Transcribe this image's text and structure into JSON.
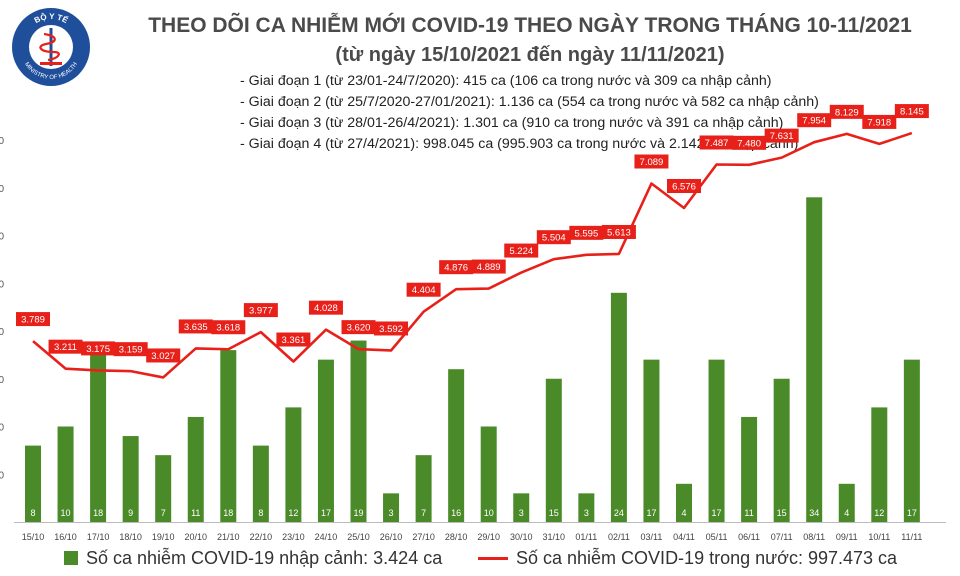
{
  "header": {
    "title": "THEO DÕI CA NHIỄM MỚI COVID-19 THEO NGÀY TRONG THÁNG 10-11/2021",
    "subtitle": "(từ ngày 15/10/2021 đến ngày 11/11/2021)",
    "logo_text_top": "BỘ Y TẾ",
    "logo_text_bottom": "MINISTRY OF HEALTH"
  },
  "stages": [
    "- Giai đoạn 1 (từ 23/01-24/7/2020): 415 ca (106 ca trong nước và 309 ca nhập cảnh)",
    "- Giai đoạn 2 (từ 25/7/2020-27/01/2021): 1.136 ca (554 ca trong nước và 582 ca nhập cảnh)",
    "- Giai đoạn 3 (từ 28/01-26/4/2021): 1.301 ca (910 ca trong nước và 391 ca nhập cảnh)",
    "- Giai đoạn 4 (từ 27/4/2021): 998.045 ca (995.903 ca trong nước và 2.142 ca nhập cảnh)"
  ],
  "colors": {
    "bar": "#4a8a28",
    "line": "#e8201a",
    "bar_label": "#ffffff",
    "line_label_bg": "#e8201a"
  },
  "chart_data": {
    "type": "bar+line",
    "categories": [
      "15/10",
      "16/10",
      "17/10",
      "18/10",
      "19/10",
      "20/10",
      "21/10",
      "22/10",
      "23/10",
      "24/10",
      "25/10",
      "26/10",
      "27/10",
      "28/10",
      "29/10",
      "30/10",
      "31/10",
      "01/11",
      "02/11",
      "03/11",
      "04/11",
      "05/11",
      "06/11",
      "07/11",
      "08/11",
      "09/11",
      "10/11",
      "11/11"
    ],
    "series": [
      {
        "name": "Số ca nhiễm COVID-19 nhập cảnh: 3.424 ca",
        "kind": "bar",
        "axis": "right",
        "values": [
          8,
          10,
          18,
          9,
          7,
          11,
          18,
          8,
          12,
          17,
          19,
          3,
          7,
          16,
          10,
          3,
          15,
          3,
          24,
          17,
          4,
          17,
          11,
          15,
          34,
          4,
          12,
          17
        ],
        "labels": [
          "8",
          "10",
          "18",
          "9",
          "7",
          "11",
          "18",
          "8",
          "12",
          "17",
          "19",
          "3",
          "7",
          "16",
          "10",
          "3",
          "15",
          "3",
          "24",
          "17",
          "4",
          "17",
          "11",
          "15",
          "34",
          "4",
          "12",
          "17"
        ]
      },
      {
        "name": "Số ca nhiễm COVID-19 trong nước: 997.473 ca",
        "kind": "line",
        "axis": "left",
        "values": [
          3789,
          3211,
          3175,
          3159,
          3027,
          3635,
          3618,
          3977,
          3361,
          4028,
          3620,
          3592,
          4404,
          4876,
          4889,
          5224,
          5504,
          5595,
          5613,
          7089,
          6576,
          7487,
          7480,
          7631,
          7954,
          8129,
          7918,
          8145
        ],
        "labels": [
          "3.789",
          "3.211",
          "3.175",
          "3.159",
          "3.027",
          "3.635",
          "3.618",
          "3.977",
          "3.361",
          "4.028",
          "3.620",
          "3.592",
          "4.404",
          "4.876",
          "4.889",
          "5.224",
          "5.504",
          "5.595",
          "5.613",
          "7.089",
          "6.576",
          "7.487",
          "7.480",
          "7.631",
          "7.954",
          "8.129",
          "7.918",
          "8.145"
        ]
      }
    ],
    "y_tick_labels": [
      "0",
      "0",
      "0",
      "0",
      "0",
      "0",
      "0",
      "0"
    ],
    "ylim": [
      0,
      8000
    ],
    "bar_axis_max": 40,
    "grid": false,
    "legend_position": "bottom"
  }
}
